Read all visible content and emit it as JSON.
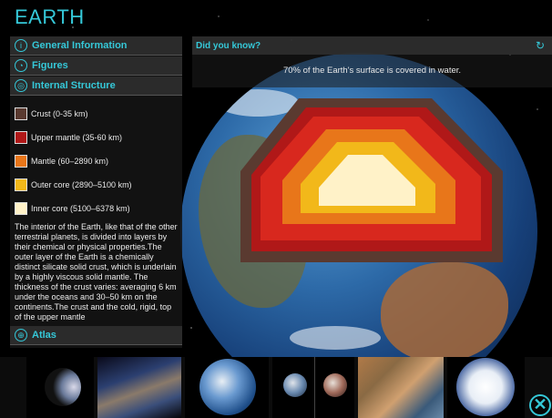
{
  "app": {
    "title": "EARTH"
  },
  "sidebar": {
    "items": [
      {
        "label": "General Information",
        "icon": "info-icon"
      },
      {
        "label": "Figures",
        "icon": "figures-icon"
      },
      {
        "label": "Internal Structure",
        "icon": "layers-icon"
      }
    ],
    "legend": [
      {
        "label": "Crust (0-35 km)",
        "color": "#5a3a30"
      },
      {
        "label": "Upper mantle (35-60 km)",
        "color": "#b01818"
      },
      {
        "label": "Mantle (60–2890 km)",
        "color": "#e8761a"
      },
      {
        "label": "Outer core (2890–5100 km)",
        "color": "#f2b81a"
      },
      {
        "label": "Inner core (5100–6378 km)",
        "color": "#fff2c8"
      }
    ],
    "description": "The interior of the Earth, like that of the other terrestrial planets, is divided into layers by their chemical or physical properties.The outer layer of the Earth is a chemically distinct silicate solid crust, which is underlain by a highly viscous solid mantle. The thickness of the crust varies: averaging 6 km under the oceans and 30–50 km on the continents.The crust and the cold, rigid, top of the upper mantle",
    "atlas": {
      "label": "Atlas",
      "icon": "globe-icon"
    }
  },
  "did_you_know": {
    "title": "Did you know?",
    "fact": "70% of the Earth's surface is covered in water.",
    "refresh_icon": "refresh-icon"
  },
  "thumbnails": [
    {
      "name": "thumb-earth-crescent"
    },
    {
      "name": "thumb-earth-horizon"
    },
    {
      "name": "thumb-earth-full"
    },
    {
      "name": "thumb-earth-pair"
    },
    {
      "name": "thumb-earth-satellite-terrain"
    },
    {
      "name": "thumb-earth-antarctica"
    }
  ],
  "close": {
    "icon": "close-icon"
  },
  "colors": {
    "accent": "#35c8d8",
    "panel": "#2d2d2d"
  }
}
